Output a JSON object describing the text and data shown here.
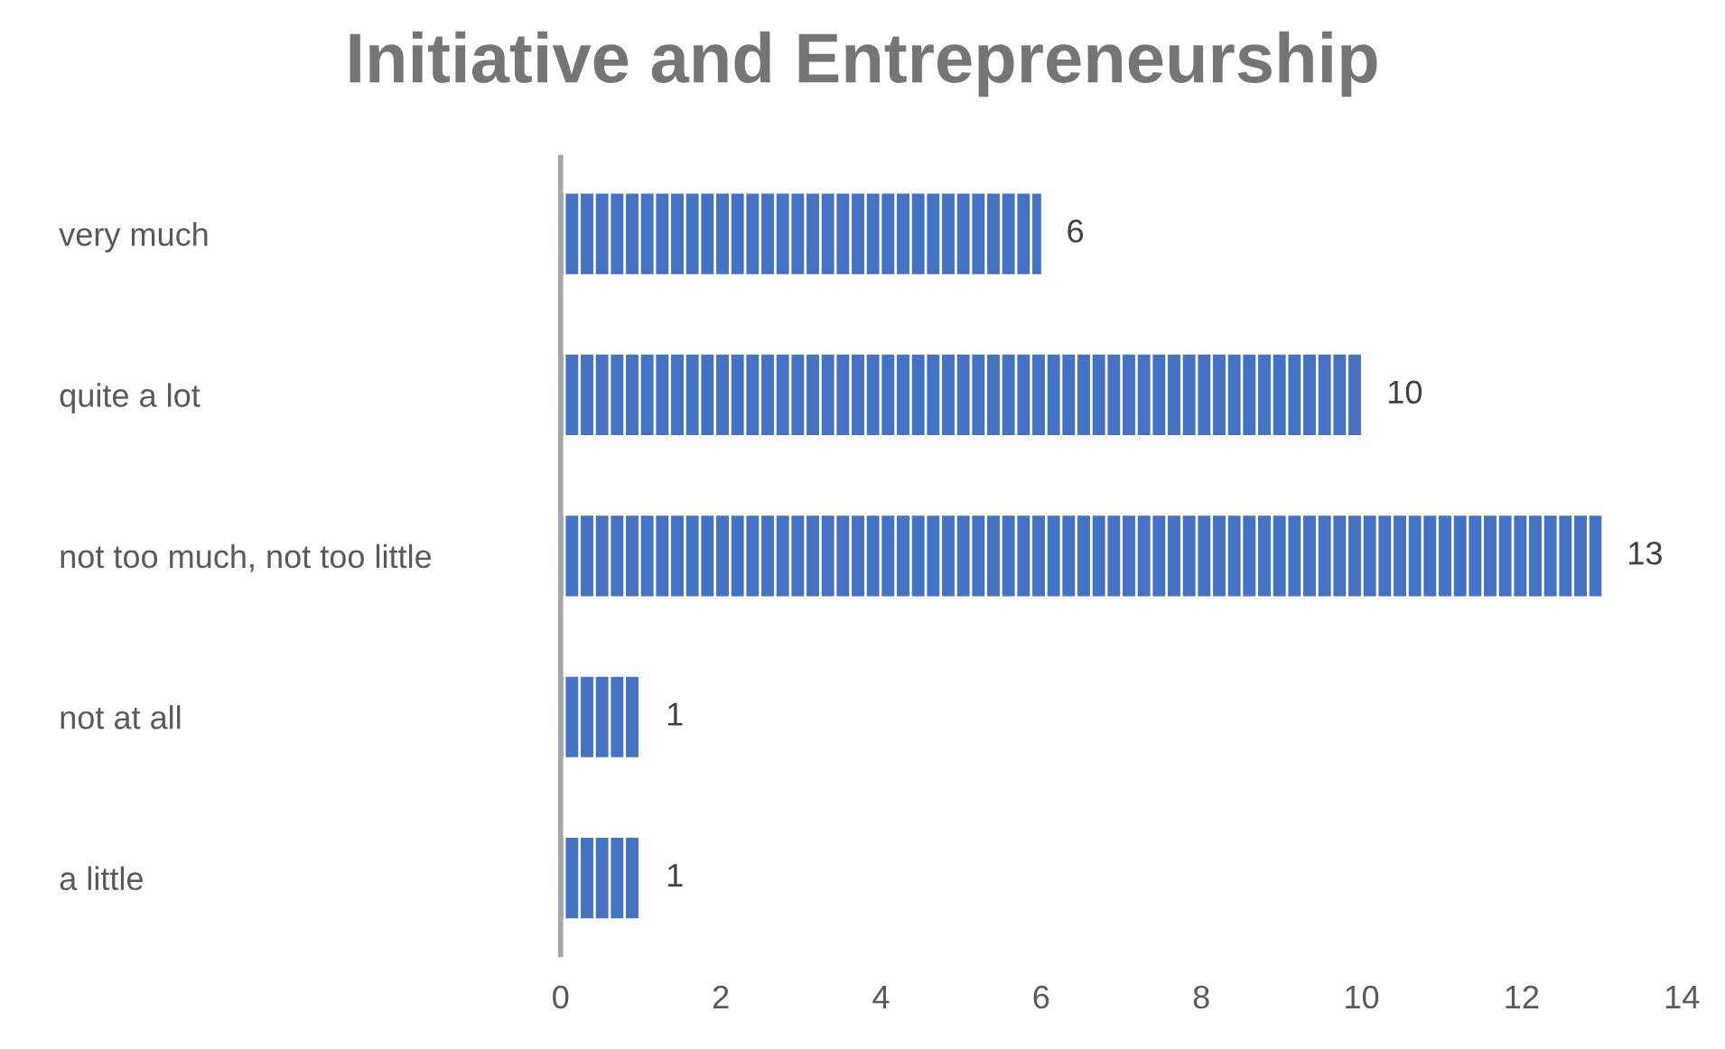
{
  "chart_data": {
    "type": "bar",
    "orientation": "horizontal",
    "title": "Initiative and Entrepreneurship",
    "categories": [
      "very much",
      "quite a lot",
      "not too much, not too little",
      "not at all",
      "a little"
    ],
    "values": [
      6,
      10,
      13,
      1,
      1
    ],
    "color": "#4472c4",
    "xlim": [
      0,
      14
    ],
    "xticks": [
      0,
      2,
      4,
      6,
      8,
      10,
      12,
      14
    ],
    "data_labels": true,
    "grid": false,
    "legend": false
  }
}
